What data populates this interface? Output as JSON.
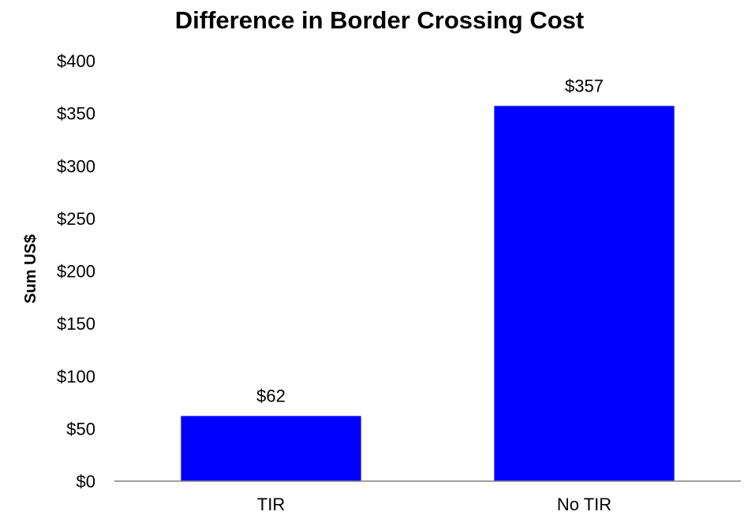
{
  "chart_data": {
    "type": "bar",
    "title": "Difference in Border Crossing Cost",
    "xlabel": "",
    "ylabel": "Sum US$",
    "categories": [
      "TIR",
      "No TIR"
    ],
    "values": [
      62,
      357
    ],
    "data_labels": [
      "$62",
      "$357"
    ],
    "ylim": [
      0,
      400
    ],
    "yticks": [
      0,
      50,
      100,
      150,
      200,
      250,
      300,
      350,
      400
    ],
    "ytick_labels": [
      "$0",
      "$50",
      "$100",
      "$150",
      "$200",
      "$250",
      "$300",
      "$350",
      "$400"
    ],
    "grid": false,
    "legend": "none",
    "bar_color": "#0000FF",
    "axis_color": "#808080"
  }
}
